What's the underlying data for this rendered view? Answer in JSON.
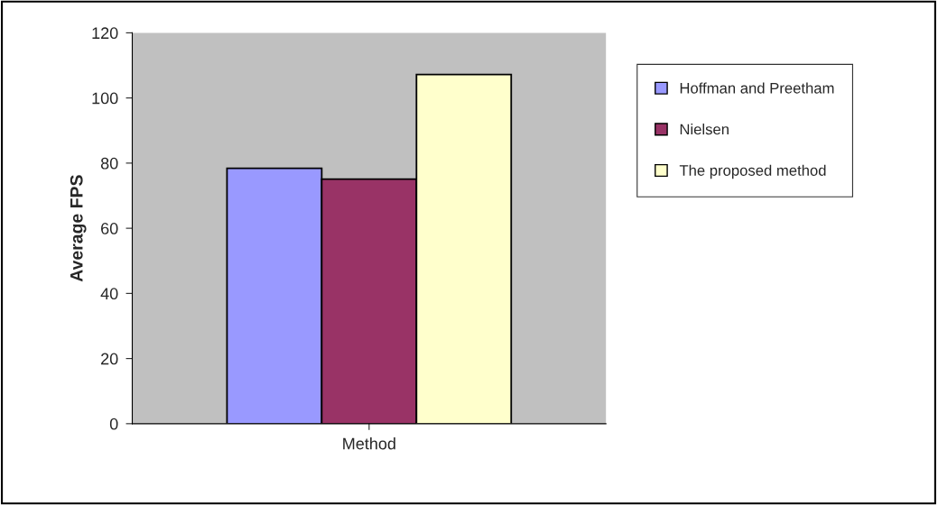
{
  "chart_data": {
    "type": "bar",
    "ylabel": "Average FPS",
    "categories": [
      "Method"
    ],
    "series": [
      {
        "name": "Hoffman and Preetham",
        "color": "#9999ff",
        "values": [
          78.4
        ]
      },
      {
        "name": "Nielsen",
        "color": "#993366",
        "values": [
          75.1
        ]
      },
      {
        "name": "The proposed method",
        "color": "#ffffcc",
        "values": [
          107.2
        ]
      }
    ],
    "ylim": [
      0,
      120
    ],
    "yticks": [
      0,
      20,
      40,
      60,
      80,
      100,
      120
    ],
    "grid": false,
    "legend": "right"
  }
}
